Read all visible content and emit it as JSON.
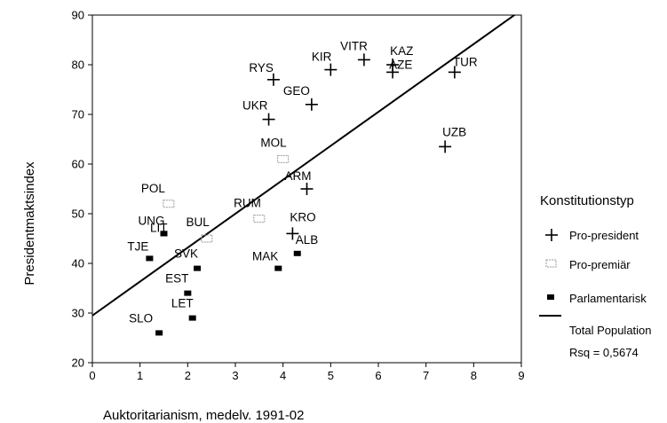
{
  "chart_data": {
    "type": "scatter",
    "xlabel": "Auktoritarianism, medelv. 1991-02",
    "ylabel": "Presidentmaktsindex",
    "xlim": [
      0,
      9
    ],
    "ylim": [
      20,
      90
    ],
    "xticks": [
      "0",
      "1",
      "2",
      "3",
      "4",
      "5",
      "6",
      "7",
      "8",
      "9"
    ],
    "yticks": [
      "20",
      "30",
      "40",
      "50",
      "60",
      "70",
      "80",
      "90"
    ],
    "grid": false,
    "legend_position": "right",
    "legend": {
      "title": "Konstitutionstyp",
      "items": [
        {
          "marker": "plus",
          "label": "Pro-president"
        },
        {
          "marker": "open-square",
          "label": "Pro-premiär"
        },
        {
          "marker": "filled-square",
          "label": "Parlamentarisk"
        },
        {
          "marker": "line",
          "label": "Total Population"
        }
      ],
      "rsq_text": "Rsq = 0,5674"
    },
    "series": [
      {
        "name": "Pro-president",
        "marker": "plus",
        "points": [
          {
            "label": "RYS",
            "x": 3.8,
            "y": 77
          },
          {
            "label": "KIR",
            "x": 5.0,
            "y": 79
          },
          {
            "label": "VITR",
            "x": 5.7,
            "y": 81
          },
          {
            "label": "KAZ",
            "x": 6.3,
            "y": 80
          },
          {
            "label": "AZE",
            "x": 6.3,
            "y": 78.5
          },
          {
            "label": "TUR",
            "x": 7.6,
            "y": 78.5
          },
          {
            "label": "GEO",
            "x": 4.6,
            "y": 72
          },
          {
            "label": "UKR",
            "x": 3.7,
            "y": 69
          },
          {
            "label": "UZB",
            "x": 7.4,
            "y": 63.5
          },
          {
            "label": "ARM",
            "x": 4.5,
            "y": 55
          },
          {
            "label": "KRO",
            "x": 4.2,
            "y": 46
          }
        ]
      },
      {
        "name": "Pro-premiär",
        "marker": "open-square",
        "points": [
          {
            "label": "MOL",
            "x": 4.0,
            "y": 61
          },
          {
            "label": "POL",
            "x": 1.6,
            "y": 52
          },
          {
            "label": "RUM",
            "x": 3.5,
            "y": 49
          },
          {
            "label": "BUL",
            "x": 2.4,
            "y": 45
          }
        ]
      },
      {
        "name": "Parlamentarisk",
        "marker": "filled-square",
        "points": [
          {
            "label": "LIT",
            "x": 1.5,
            "y": 46
          },
          {
            "label": "UNG",
            "x": 1.5,
            "y": 46
          },
          {
            "label": "TJE",
            "x": 1.2,
            "y": 41
          },
          {
            "label": "SVK",
            "x": 2.2,
            "y": 39
          },
          {
            "label": "ALB",
            "x": 4.3,
            "y": 42
          },
          {
            "label": "MAK",
            "x": 3.9,
            "y": 39
          },
          {
            "label": "EST",
            "x": 2.0,
            "y": 34
          },
          {
            "label": "LET",
            "x": 2.1,
            "y": 29
          },
          {
            "label": "SLO",
            "x": 1.4,
            "y": 26
          }
        ]
      }
    ],
    "fit_line": {
      "name": "Total Population",
      "x": [
        0,
        9
      ],
      "y": [
        29.5,
        91
      ]
    }
  }
}
